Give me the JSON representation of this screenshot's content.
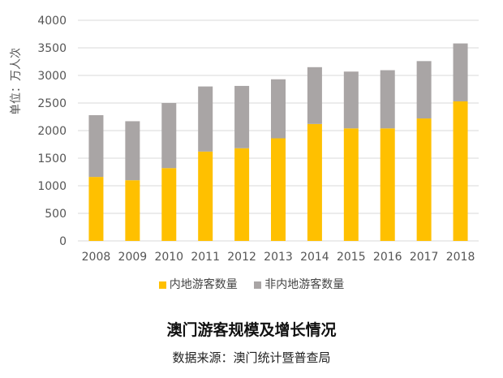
{
  "chart_data": {
    "type": "bar",
    "stacked": true,
    "title": "澳门游客规模及增长情况",
    "source": "数据来源：澳门统计暨普查局",
    "ylabel": "单位：万人次",
    "xlabel": "",
    "ylim": [
      0,
      4000
    ],
    "yticks": [
      0,
      500,
      1000,
      1500,
      2000,
      2500,
      3000,
      3500,
      4000
    ],
    "grid": true,
    "legend_position": "bottom",
    "categories": [
      "2008",
      "2009",
      "2010",
      "2011",
      "2012",
      "2013",
      "2014",
      "2015",
      "2016",
      "2017",
      "2018"
    ],
    "series": [
      {
        "name": "内地游客数量",
        "color": "#FFC000",
        "values": [
          1160,
          1100,
          1320,
          1620,
          1680,
          1860,
          2120,
          2040,
          2040,
          2220,
          2530
        ]
      },
      {
        "name": "非内地游客数量",
        "color": "#A9A5A5",
        "values": [
          1120,
          1070,
          1180,
          1180,
          1130,
          1070,
          1030,
          1030,
          1055,
          1040,
          1050
        ]
      }
    ]
  }
}
